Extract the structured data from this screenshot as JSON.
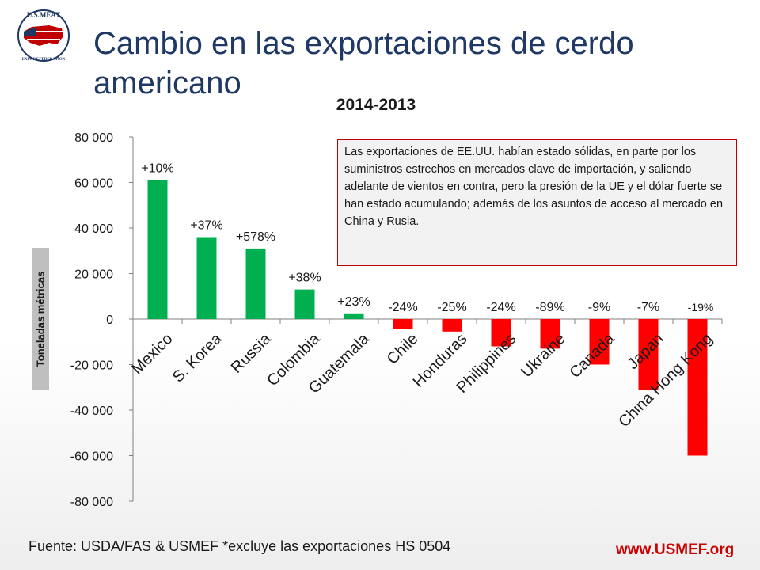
{
  "slide": {
    "title": "Cambio en las exportaciones de cerdo americano",
    "note": "Las exportaciones de EE.UU. habían estado sólidas, en parte por los suministros estrechos en mercados clave de importación, y saliendo adelante de vientos en contra, pero la presión de la UE y el dólar fuerte se han estado acumulando; además de los asuntos de acceso al mercado en China y Rusia.",
    "source": "Fuente: USDA/FAS & USMEF *excluye las exportaciones HS 0504",
    "website": "www.USMEF.org",
    "logo": {
      "text_top": "U.S.MEAT",
      "text_bottom": "EXPORT FEDERATION",
      "icon": "us-map-flag-icon"
    }
  },
  "chart_data": {
    "type": "bar",
    "title": "2014-2013",
    "ylabel": "Toneladas métricas",
    "xlabel": "",
    "ylim": [
      -80000,
      80000
    ],
    "yticks": [
      80000,
      60000,
      40000,
      20000,
      0,
      -20000,
      -40000,
      -60000,
      -80000
    ],
    "ytick_labels": [
      "80 000",
      "60 000",
      "40 000",
      "20 000",
      "0",
      "-20 000",
      "-40 000",
      "-60 000",
      "-80 000"
    ],
    "categories": [
      "Mexico",
      "S. Korea",
      "Russia",
      "Colombia",
      "Guatemala",
      "Chile",
      "Honduras",
      "Philippines",
      "Ukraine",
      "Canada",
      "Japan",
      "China Hong Kong"
    ],
    "values": [
      61000,
      36000,
      31000,
      13000,
      2500,
      -4500,
      -5500,
      -12000,
      -13000,
      -20000,
      -31000,
      -60000
    ],
    "data_labels": [
      "+10%",
      "+37%",
      "+578%",
      "+38%",
      "+23%",
      "-24%",
      "-25%",
      "-24%",
      "-89%",
      "-9%",
      "-7%",
      "-19%"
    ],
    "colors": {
      "positive": "#00b050",
      "negative": "#ff0000"
    },
    "grid": false,
    "legend": "none"
  }
}
